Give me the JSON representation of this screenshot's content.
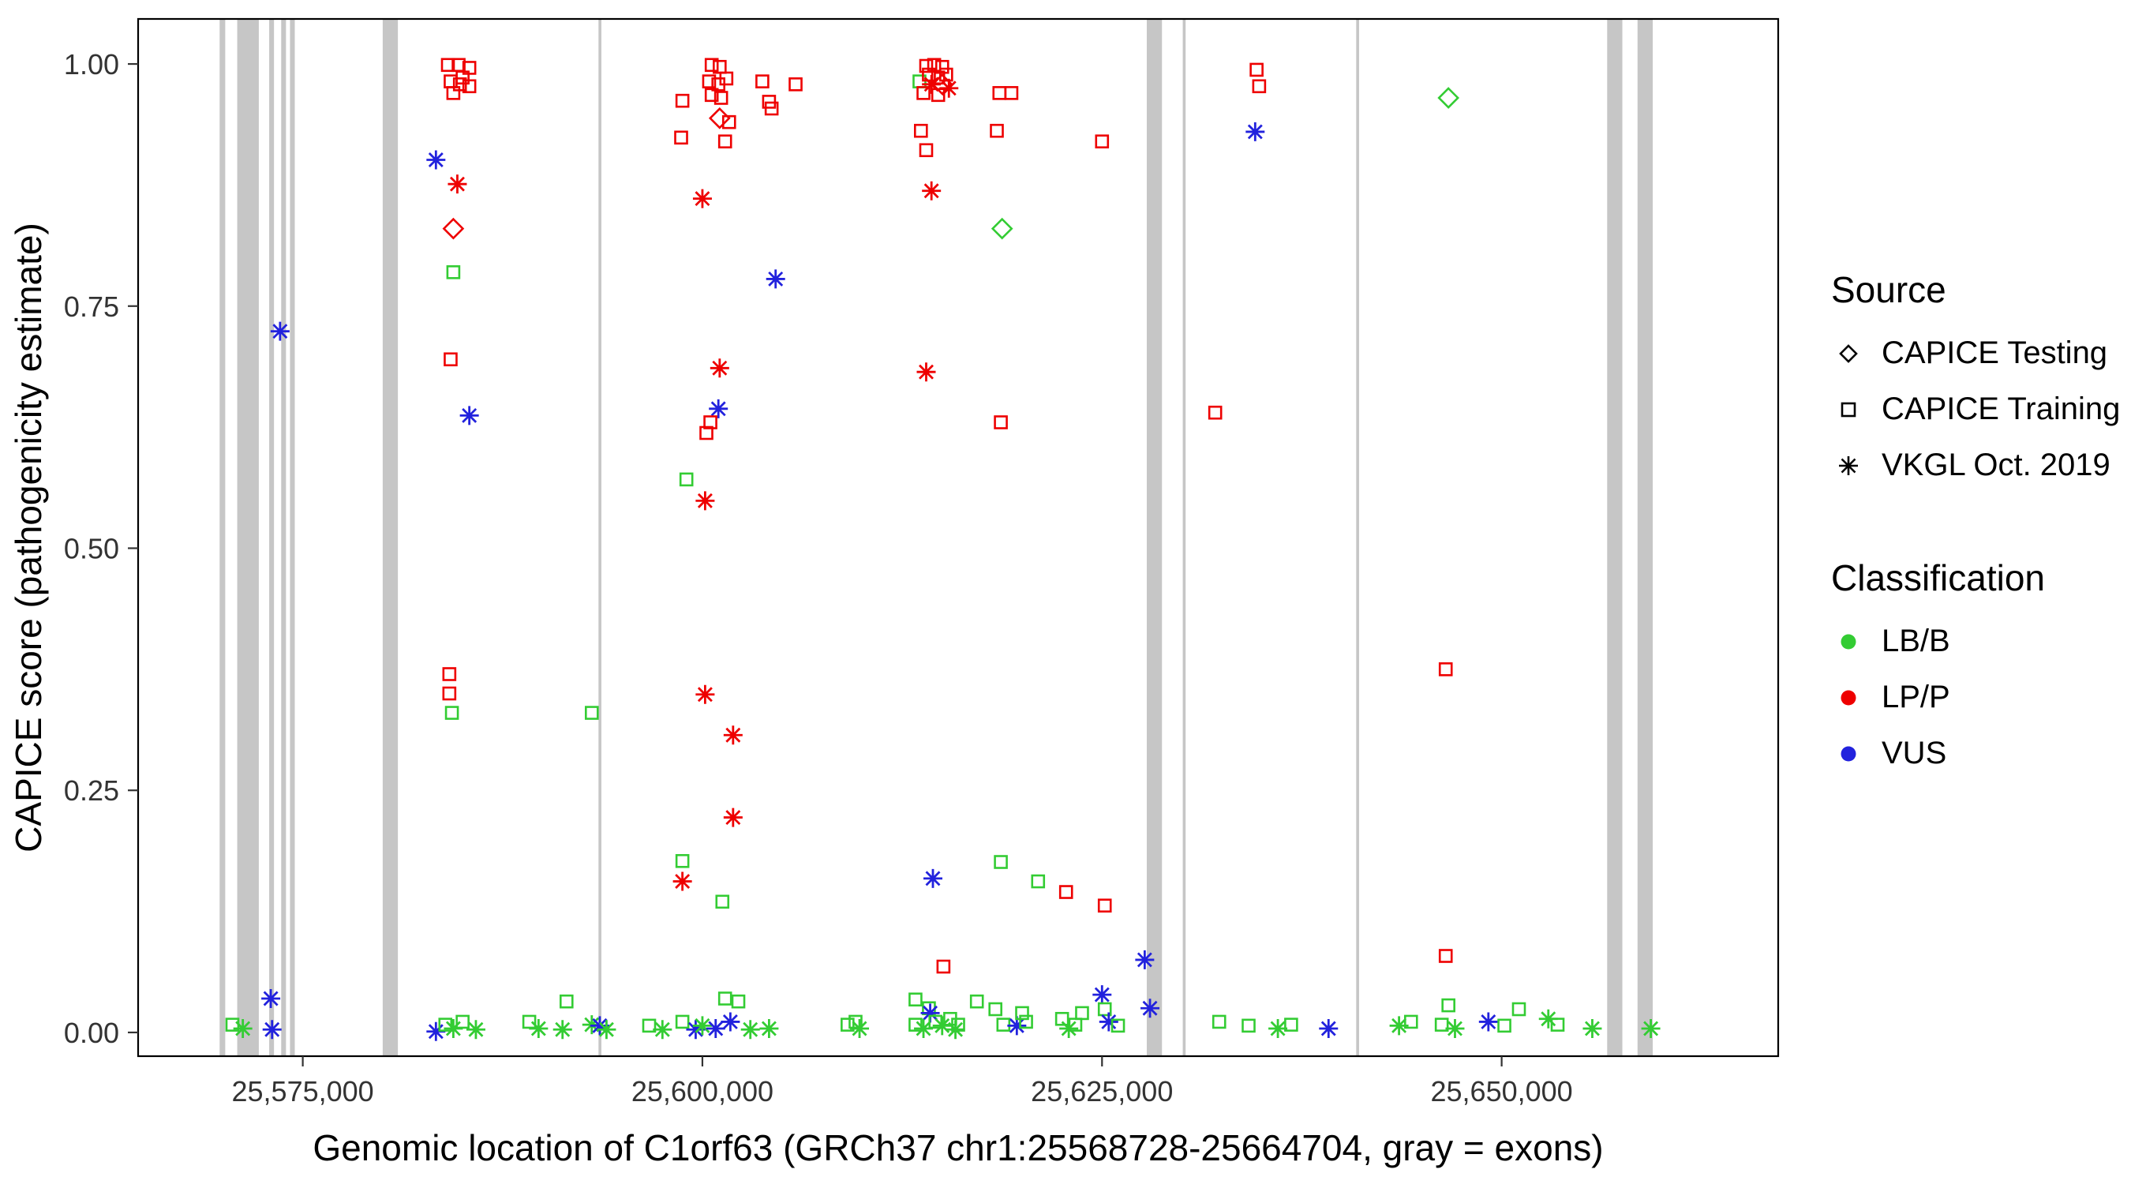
{
  "axes": {
    "x_label": "Genomic location of C1orf63 (GRCh37 chr1:25568728-25664704, gray = exons)",
    "y_label": "CAPICE score (pathogenicity estimate)",
    "x_ticks": [
      {
        "value": 25575000,
        "label": "25,575,000"
      },
      {
        "value": 25600000,
        "label": "25,600,000"
      },
      {
        "value": 25625000,
        "label": "25,625,000"
      },
      {
        "value": 25650000,
        "label": "25,650,000"
      }
    ],
    "y_ticks": [
      {
        "value": 0.0,
        "label": "0.00"
      },
      {
        "value": 0.25,
        "label": "0.25"
      },
      {
        "value": 0.5,
        "label": "0.50"
      },
      {
        "value": 0.75,
        "label": "0.75"
      },
      {
        "value": 1.0,
        "label": "1.00"
      }
    ]
  },
  "legend": {
    "source": {
      "title": "Source",
      "items": [
        {
          "label": "CAPICE Testing",
          "shape": "diamond"
        },
        {
          "label": "CAPICE Training",
          "shape": "square"
        },
        {
          "label": "VKGL Oct. 2019",
          "shape": "asterisk"
        }
      ]
    },
    "classification": {
      "title": "Classification",
      "items": [
        {
          "label": "LB/B",
          "color": "#33cc33"
        },
        {
          "label": "LP/P",
          "color": "#ee0000"
        },
        {
          "label": "VUS",
          "color": "#2222dd"
        }
      ]
    }
  },
  "colors": {
    "LB/B": "#33cc33",
    "LP/P": "#ee0000",
    "VUS": "#2222dd",
    "exon": "#c6c6c6",
    "border": "#000000"
  },
  "chart_data": {
    "type": "scatter",
    "title": "",
    "xlabel": "Genomic location of C1orf63 (GRCh37 chr1:25568728-25664704, gray = exons)",
    "ylabel": "CAPICE score (pathogenicity estimate)",
    "xlim": [
      25564700,
      25667300
    ],
    "ylim": [
      -0.0245,
      1.0465
    ],
    "grid": false,
    "legend_position": "right",
    "exons": [
      [
        25569800,
        25570150
      ],
      [
        25570900,
        25572250
      ],
      [
        25572900,
        25573200
      ],
      [
        25573650,
        25573950
      ],
      [
        25574200,
        25574500
      ],
      [
        25580000,
        25580950
      ],
      [
        25593500,
        25593680
      ],
      [
        25627800,
        25628750
      ],
      [
        25630050,
        25630230
      ],
      [
        25640900,
        25641080
      ],
      [
        25656600,
        25657550
      ],
      [
        25658500,
        25659450
      ]
    ],
    "points_columns": [
      "position",
      "score",
      "source",
      "classification"
    ],
    "points": [
      [
        25570600,
        0.008,
        "training",
        "LB/B"
      ],
      [
        25571250,
        0.004,
        "vkgl",
        "LB/B"
      ],
      [
        25573000,
        0.035,
        "vkgl",
        "VUS"
      ],
      [
        25573080,
        0.003,
        "vkgl",
        "VUS"
      ],
      [
        25573580,
        0.724,
        "vkgl",
        "VUS"
      ],
      [
        25584080,
        0.999,
        "training",
        "LP/P"
      ],
      [
        25584750,
        0.999,
        "training",
        "LP/P"
      ],
      [
        25585420,
        0.996,
        "training",
        "LP/P"
      ],
      [
        25584250,
        0.982,
        "training",
        "LP/P"
      ],
      [
        25584830,
        0.979,
        "training",
        "LP/P"
      ],
      [
        25585420,
        0.977,
        "training",
        "LP/P"
      ],
      [
        25584420,
        0.97,
        "training",
        "LP/P"
      ],
      [
        25585000,
        0.986,
        "training",
        "LP/P"
      ],
      [
        25583330,
        0.901,
        "vkgl",
        "VUS"
      ],
      [
        25584670,
        0.876,
        "vkgl",
        "LP/P"
      ],
      [
        25584420,
        0.83,
        "testing",
        "LP/P"
      ],
      [
        25584420,
        0.785,
        "training",
        "LB/B"
      ],
      [
        25584250,
        0.695,
        "training",
        "LP/P"
      ],
      [
        25585420,
        0.637,
        "vkgl",
        "VUS"
      ],
      [
        25584170,
        0.37,
        "training",
        "LP/P"
      ],
      [
        25584170,
        0.35,
        "training",
        "LP/P"
      ],
      [
        25584330,
        0.33,
        "training",
        "LB/B"
      ],
      [
        25583330,
        0.001,
        "vkgl",
        "VUS"
      ],
      [
        25583920,
        0.008,
        "training",
        "LB/B"
      ],
      [
        25584420,
        0.004,
        "vkgl",
        "LB/B"
      ],
      [
        25585000,
        0.011,
        "training",
        "LB/B"
      ],
      [
        25585830,
        0.003,
        "vkgl",
        "LB/B"
      ],
      [
        25589170,
        0.011,
        "training",
        "LB/B"
      ],
      [
        25589750,
        0.004,
        "vkgl",
        "LB/B"
      ],
      [
        25591250,
        0.003,
        "vkgl",
        "LB/B"
      ],
      [
        25591500,
        0.032,
        "training",
        "LB/B"
      ],
      [
        25593080,
        0.33,
        "training",
        "LB/B"
      ],
      [
        25593080,
        0.008,
        "vkgl",
        "LB/B"
      ],
      [
        25593580,
        0.007,
        "vkgl",
        "VUS"
      ],
      [
        25594000,
        0.003,
        "vkgl",
        "LB/B"
      ],
      [
        25598750,
        0.962,
        "training",
        "LP/P"
      ],
      [
        25598670,
        0.924,
        "training",
        "LP/P"
      ],
      [
        25599000,
        0.571,
        "training",
        "LB/B"
      ],
      [
        25598750,
        0.177,
        "training",
        "LB/B"
      ],
      [
        25598750,
        0.156,
        "vkgl",
        "LP/P"
      ],
      [
        25600000,
        0.861,
        "vkgl",
        "LP/P"
      ],
      [
        25600580,
        0.999,
        "training",
        "LP/P"
      ],
      [
        25601080,
        0.997,
        "training",
        "LP/P"
      ],
      [
        25600420,
        0.982,
        "training",
        "LP/P"
      ],
      [
        25601000,
        0.979,
        "training",
        "LP/P"
      ],
      [
        25601500,
        0.985,
        "training",
        "LP/P"
      ],
      [
        25600580,
        0.968,
        "training",
        "LP/P"
      ],
      [
        25601170,
        0.965,
        "training",
        "LP/P"
      ],
      [
        25601080,
        0.944,
        "testing",
        "LP/P"
      ],
      [
        25601670,
        0.94,
        "training",
        "LP/P"
      ],
      [
        25601420,
        0.92,
        "training",
        "LP/P"
      ],
      [
        25601080,
        0.686,
        "vkgl",
        "LP/P"
      ],
      [
        25601000,
        0.644,
        "vkgl",
        "VUS"
      ],
      [
        25600500,
        0.63,
        "training",
        "LP/P"
      ],
      [
        25600250,
        0.619,
        "training",
        "LP/P"
      ],
      [
        25600170,
        0.549,
        "vkgl",
        "LP/P"
      ],
      [
        25600170,
        0.349,
        "vkgl",
        "LP/P"
      ],
      [
        25601920,
        0.307,
        "vkgl",
        "LP/P"
      ],
      [
        25601920,
        0.222,
        "vkgl",
        "LP/P"
      ],
      [
        25601250,
        0.135,
        "training",
        "LB/B"
      ],
      [
        25596670,
        0.007,
        "training",
        "LB/B"
      ],
      [
        25597500,
        0.003,
        "vkgl",
        "LB/B"
      ],
      [
        25598750,
        0.011,
        "training",
        "LB/B"
      ],
      [
        25599580,
        0.003,
        "vkgl",
        "VUS"
      ],
      [
        25600000,
        0.007,
        "vkgl",
        "LB/B"
      ],
      [
        25600830,
        0.004,
        "vkgl",
        "VUS"
      ],
      [
        25601420,
        0.035,
        "training",
        "LB/B"
      ],
      [
        25601750,
        0.011,
        "vkgl",
        "VUS"
      ],
      [
        25602250,
        0.032,
        "training",
        "LB/B"
      ],
      [
        25603000,
        0.003,
        "vkgl",
        "LB/B"
      ],
      [
        25604170,
        0.004,
        "vkgl",
        "LB/B"
      ],
      [
        25603750,
        0.982,
        "training",
        "LP/P"
      ],
      [
        25604170,
        0.961,
        "training",
        "LP/P"
      ],
      [
        25604330,
        0.954,
        "training",
        "LP/P"
      ],
      [
        25604580,
        0.778,
        "vkgl",
        "VUS"
      ],
      [
        25605830,
        0.979,
        "training",
        "LP/P"
      ],
      [
        25609080,
        0.008,
        "training",
        "LB/B"
      ],
      [
        25609580,
        0.011,
        "training",
        "LB/B"
      ],
      [
        25609830,
        0.004,
        "vkgl",
        "LB/B"
      ],
      [
        25613580,
        0.982,
        "training",
        "LB/B"
      ],
      [
        25614000,
        0.998,
        "training",
        "LP/P"
      ],
      [
        25614500,
        0.999,
        "training",
        "LP/P"
      ],
      [
        25615000,
        0.997,
        "training",
        "LP/P"
      ],
      [
        25614170,
        0.989,
        "training",
        "LP/P"
      ],
      [
        25614750,
        0.986,
        "training",
        "LP/P"
      ],
      [
        25615250,
        0.989,
        "training",
        "LP/P"
      ],
      [
        25615000,
        0.979,
        "testing",
        "LP/P"
      ],
      [
        25614330,
        0.979,
        "vkgl",
        "LP/P"
      ],
      [
        25615420,
        0.975,
        "vkgl",
        "LP/P"
      ],
      [
        25613830,
        0.97,
        "training",
        "LP/P"
      ],
      [
        25614750,
        0.968,
        "training",
        "LP/P"
      ],
      [
        25613670,
        0.931,
        "training",
        "LP/P"
      ],
      [
        25614000,
        0.911,
        "training",
        "LP/P"
      ],
      [
        25614330,
        0.869,
        "vkgl",
        "LP/P"
      ],
      [
        25614000,
        0.682,
        "vkgl",
        "LP/P"
      ],
      [
        25614420,
        0.159,
        "vkgl",
        "VUS"
      ],
      [
        25615080,
        0.068,
        "training",
        "LP/P"
      ],
      [
        25613330,
        0.034,
        "training",
        "LB/B"
      ],
      [
        25614170,
        0.025,
        "training",
        "LB/B"
      ],
      [
        25614250,
        0.02,
        "vkgl",
        "VUS"
      ],
      [
        25613330,
        0.008,
        "training",
        "LB/B"
      ],
      [
        25613830,
        0.004,
        "vkgl",
        "LB/B"
      ],
      [
        25614580,
        0.011,
        "training",
        "LB/B"
      ],
      [
        25615000,
        0.007,
        "vkgl",
        "LB/B"
      ],
      [
        25615500,
        0.014,
        "training",
        "LB/B"
      ],
      [
        25615830,
        0.003,
        "vkgl",
        "LB/B"
      ],
      [
        25616000,
        0.008,
        "training",
        "LB/B"
      ],
      [
        25618580,
        0.97,
        "training",
        "LP/P"
      ],
      [
        25619330,
        0.97,
        "training",
        "LP/P"
      ],
      [
        25618420,
        0.931,
        "training",
        "LP/P"
      ],
      [
        25618750,
        0.83,
        "testing",
        "LB/B"
      ],
      [
        25618670,
        0.63,
        "training",
        "LP/P"
      ],
      [
        25618670,
        0.176,
        "training",
        "LB/B"
      ],
      [
        25617170,
        0.032,
        "training",
        "LB/B"
      ],
      [
        25618330,
        0.024,
        "training",
        "LB/B"
      ],
      [
        25618830,
        0.008,
        "training",
        "LB/B"
      ],
      [
        25619670,
        0.007,
        "vkgl",
        "VUS"
      ],
      [
        25620000,
        0.02,
        "training",
        "LB/B"
      ],
      [
        25620250,
        0.011,
        "training",
        "LB/B"
      ],
      [
        25621000,
        0.156,
        "training",
        "LB/B"
      ],
      [
        25622750,
        0.145,
        "training",
        "LP/P"
      ],
      [
        25625000,
        0.92,
        "training",
        "LP/P"
      ],
      [
        25625170,
        0.131,
        "training",
        "LP/P"
      ],
      [
        25622500,
        0.014,
        "training",
        "LB/B"
      ],
      [
        25622920,
        0.004,
        "vkgl",
        "LB/B"
      ],
      [
        25623330,
        0.008,
        "training",
        "LB/B"
      ],
      [
        25623750,
        0.02,
        "training",
        "LB/B"
      ],
      [
        25625000,
        0.039,
        "vkgl",
        "VUS"
      ],
      [
        25625170,
        0.024,
        "training",
        "LB/B"
      ],
      [
        25625420,
        0.011,
        "vkgl",
        "VUS"
      ],
      [
        25626000,
        0.007,
        "training",
        "LB/B"
      ],
      [
        25627670,
        0.075,
        "vkgl",
        "VUS"
      ],
      [
        25628000,
        0.025,
        "vkgl",
        "VUS"
      ],
      [
        25632080,
        0.64,
        "training",
        "LP/P"
      ],
      [
        25632330,
        0.011,
        "training",
        "LB/B"
      ],
      [
        25634670,
        0.994,
        "training",
        "LP/P"
      ],
      [
        25634830,
        0.977,
        "training",
        "LP/P"
      ],
      [
        25634580,
        0.93,
        "vkgl",
        "VUS"
      ],
      [
        25634170,
        0.007,
        "training",
        "LB/B"
      ],
      [
        25636000,
        0.004,
        "vkgl",
        "LB/B"
      ],
      [
        25636830,
        0.008,
        "training",
        "LB/B"
      ],
      [
        25639170,
        0.004,
        "vkgl",
        "VUS"
      ],
      [
        25643580,
        0.007,
        "vkgl",
        "LB/B"
      ],
      [
        25644330,
        0.011,
        "training",
        "LB/B"
      ],
      [
        25646670,
        0.965,
        "testing",
        "LB/B"
      ],
      [
        25646500,
        0.375,
        "training",
        "LP/P"
      ],
      [
        25646500,
        0.079,
        "training",
        "LP/P"
      ],
      [
        25646250,
        0.008,
        "training",
        "LB/B"
      ],
      [
        25646670,
        0.028,
        "training",
        "LB/B"
      ],
      [
        25647080,
        0.004,
        "vkgl",
        "LB/B"
      ],
      [
        25649170,
        0.011,
        "vkgl",
        "VUS"
      ],
      [
        25650170,
        0.007,
        "training",
        "LB/B"
      ],
      [
        25651080,
        0.024,
        "training",
        "LB/B"
      ],
      [
        25652920,
        0.014,
        "vkgl",
        "LB/B"
      ],
      [
        25653500,
        0.008,
        "training",
        "LB/B"
      ],
      [
        25655670,
        0.004,
        "vkgl",
        "LB/B"
      ],
      [
        25659330,
        0.004,
        "vkgl",
        "LB/B"
      ]
    ]
  }
}
